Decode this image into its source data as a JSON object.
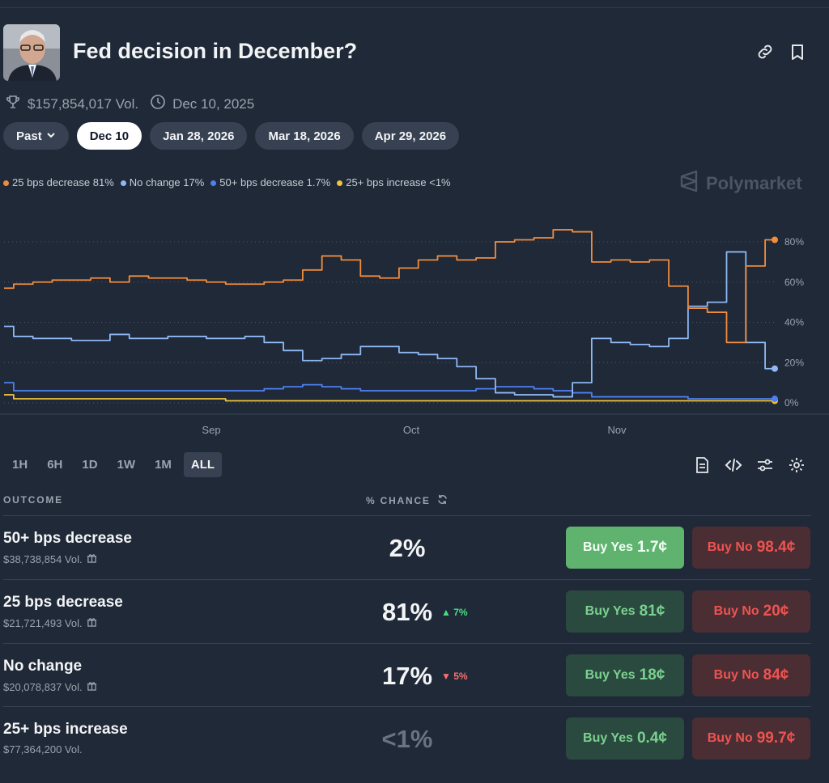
{
  "market": {
    "title": "Fed decision in December?",
    "volume": "$157,854,017 Vol.",
    "date": "Dec 10, 2025"
  },
  "date_pills": [
    "Past",
    "Dec 10",
    "Jan 28, 2026",
    "Mar 18, 2026",
    "Apr 29, 2026"
  ],
  "legend": [
    {
      "label": "25 bps decrease 81%",
      "color": "#f28c3d"
    },
    {
      "label": "No change 17%",
      "color": "#8fb8f4"
    },
    {
      "label": "50+ bps decrease 1.7%",
      "color": "#4f7ff0"
    },
    {
      "label": "25+ bps increase <1%",
      "color": "#f0c33c"
    }
  ],
  "brand": "Polymarket",
  "time_ranges": [
    "1H",
    "6H",
    "1D",
    "1W",
    "1M",
    "ALL"
  ],
  "table": {
    "outcome_header": "OUTCOME",
    "chance_header": "% CHANCE",
    "rows": [
      {
        "name": "50+ bps decrease",
        "volume": "$38,738,854 Vol.",
        "chance": "2%",
        "delta": "",
        "yes_label": "Buy Yes",
        "yes_price": "1.7¢",
        "no_label": "Buy No",
        "no_price": "98.4¢"
      },
      {
        "name": "25 bps decrease",
        "volume": "$21,721,493 Vol.",
        "chance": "81%",
        "delta": "▲ 7%",
        "yes_label": "Buy Yes",
        "yes_price": "81¢",
        "no_label": "Buy No",
        "no_price": "20¢"
      },
      {
        "name": "No change",
        "volume": "$20,078,837 Vol.",
        "chance": "17%",
        "delta": "▼ 5%",
        "yes_label": "Buy Yes",
        "yes_price": "18¢",
        "no_label": "Buy No",
        "no_price": "84¢"
      },
      {
        "name": "25+ bps increase",
        "volume": "$77,364,200 Vol.",
        "chance": "<1%",
        "delta": "",
        "yes_label": "Buy Yes",
        "yes_price": "0.4¢",
        "no_label": "Buy No",
        "no_price": "99.7¢"
      }
    ]
  },
  "chart_data": {
    "type": "line",
    "x_ticks": [
      "Sep",
      "Oct",
      "Nov"
    ],
    "y_ticks": [
      "0%",
      "20%",
      "40%",
      "60%",
      "80%"
    ],
    "ylim": [
      0,
      90
    ],
    "x": [
      0,
      1,
      2,
      3,
      4,
      5,
      6,
      7,
      8,
      9,
      10,
      11,
      12,
      13,
      14,
      15,
      16,
      17,
      18,
      19,
      20,
      21,
      22,
      23,
      24,
      25,
      26,
      27,
      28,
      29,
      30,
      31,
      32,
      33,
      34,
      35,
      36,
      37,
      38,
      39,
      40
    ],
    "series": [
      {
        "name": "25 bps decrease",
        "color": "#f28c3d",
        "values": [
          57,
          59,
          60,
          61,
          61,
          62,
          60,
          63,
          62,
          62,
          61,
          60,
          59,
          59,
          60,
          61,
          66,
          73,
          71,
          63,
          62,
          67,
          71,
          73,
          71,
          72,
          80,
          81,
          82,
          86,
          85,
          70,
          71,
          70,
          71,
          58,
          47,
          45,
          30,
          68,
          81
        ]
      },
      {
        "name": "No change",
        "color": "#8fb8f4",
        "values": [
          38,
          33,
          32,
          32,
          31,
          31,
          34,
          32,
          32,
          33,
          33,
          32,
          32,
          33,
          30,
          26,
          21,
          22,
          24,
          28,
          28,
          25,
          24,
          22,
          18,
          12,
          5,
          4,
          4,
          3,
          10,
          32,
          30,
          29,
          28,
          32,
          48,
          50,
          75,
          30,
          17
        ]
      },
      {
        "name": "50+ bps decrease",
        "color": "#4f7ff0",
        "values": [
          10,
          6,
          6,
          6,
          6,
          6,
          6,
          6,
          6,
          6,
          6,
          6,
          6,
          6,
          7,
          8,
          9,
          8,
          7,
          6,
          6,
          6,
          6,
          6,
          6,
          7,
          8,
          8,
          7,
          6,
          5,
          3,
          3,
          3,
          3,
          3,
          2,
          2,
          2,
          2,
          2
        ]
      },
      {
        "name": "25+ bps increase",
        "color": "#f0c33c",
        "values": [
          4,
          2,
          2,
          2,
          2,
          2,
          2,
          2,
          2,
          2,
          2,
          2,
          1,
          1,
          1,
          1,
          1,
          1,
          1,
          1,
          1,
          1,
          1,
          1,
          1,
          1,
          1,
          1,
          1,
          1,
          1,
          1,
          1,
          1,
          1,
          1,
          1,
          1,
          1,
          1,
          1
        ]
      }
    ]
  }
}
